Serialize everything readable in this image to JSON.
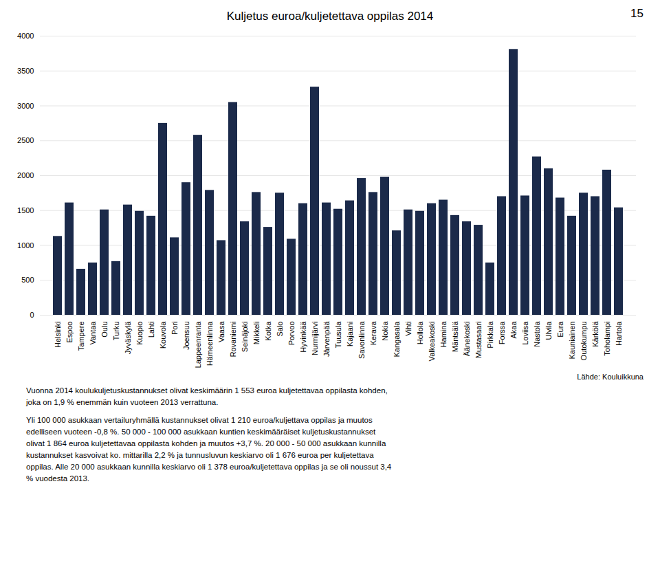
{
  "chart_data": {
    "type": "bar",
    "title": "Kuljetus euroa/kuljetettava oppilas 2014",
    "page_number": "15",
    "source": "Lähde: Kouluikkuna",
    "footnote": [
      [
        "Vuonna 2014 koulukuljetuskustannukset olivat keskimäärin 1 553 euroa kuljetettavaa oppilasta kohden,",
        "joka on 1,9 % enemmän kuin vuoteen 2013 verrattuna."
      ],
      [
        "Yli 100 000 asukkaan vertailuryhmällä kustannukset olivat 1 210 euroa/kuljettava oppilas ja muutos",
        "edelliseen vuoteen -0,8 %. 50 000 - 100 000 asukkaan kuntien keskimääräiset kuljetuskustannukset",
        "olivat 1 864 euroa kuljetettavaa oppilasta kohden ja muutos +3,7 %. 20 000 - 50 000 asukkaan kunnilla",
        "kustannukset kasvoivat ko. mittarilla 2,2 % ja tunnusluvun keskiarvo oli 1 676 euroa per kuljetettava",
        "oppilas. Alle 20 000 asukkaan kunnilla keskiarvo oli 1 378 euroa/kuljetettava oppilas ja se oli noussut 3,4",
        "% vuodesta 2013."
      ]
    ],
    "categories": [
      "Helsinki",
      "Espoo",
      "Tampere",
      "Vantaa",
      "Oulu",
      "Turku",
      "Jyväskylä",
      "Kuopio",
      "Lahti",
      "Kouvola",
      "Pori",
      "Joensuu",
      "Lappeenranta",
      "Hämeenlinna",
      "Vaasa",
      "Rovaniemi",
      "Seinäjoki",
      "Mikkeli",
      "Kotka",
      "Salo",
      "Porvoo",
      "Hyvinkää",
      "Nurmijärvi",
      "Järvenpää",
      "Tuusula",
      "Kajaani",
      "Savonlinna",
      "Kerava",
      "Nokia",
      "Kangasala",
      "Vihti",
      "Hollola",
      "Valkeakoski",
      "Hamina",
      "Mäntsälä",
      "Äänekoski",
      "Mustasaari",
      "Pirkkala",
      "Forssa",
      "Akaa",
      "Loviisa",
      "Nastola",
      "Ulvila",
      "Eura",
      "Kauniainen",
      "Outokumpu",
      "Kärkölä",
      "Toholampi",
      "Hartola"
    ],
    "values": [
      1130,
      1610,
      660,
      750,
      1510,
      770,
      1580,
      1490,
      1420,
      2750,
      1110,
      1900,
      2580,
      1790,
      1070,
      3050,
      1340,
      1760,
      1260,
      1750,
      1090,
      1600,
      3270,
      1610,
      1520,
      1640,
      1960,
      1760,
      1980,
      1210,
      1510,
      1490,
      1600,
      1650,
      1430,
      1340,
      1290,
      750,
      1700,
      3810,
      1710,
      2270,
      2100,
      1680,
      1420,
      1750,
      1700,
      2080,
      1540
    ],
    "color": "#1B2A4A",
    "ylim": [
      0,
      4000
    ],
    "yticks": [
      0,
      500,
      1000,
      1500,
      2000,
      2500,
      3000,
      3500,
      4000
    ],
    "grid": true
  }
}
